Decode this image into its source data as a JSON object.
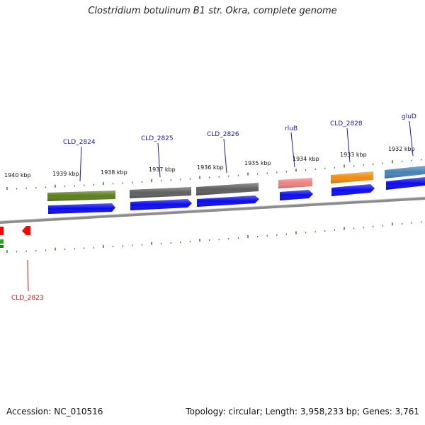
{
  "title": "Clostridium botulinum B1 str. Okra, complete genome",
  "footer": {
    "accession": "Accession: NC_010516",
    "summary": "Topology: circular; Length: 3,958,233 bp; Genes: 3,761"
  },
  "colors": {
    "backbone": "#888888",
    "tick": "#2e7d1a",
    "cds": "#0a0af0",
    "label_forward": "#1a1aa8",
    "label_reverse": "#cc1111"
  },
  "scale_labels": [
    "1940 kbp",
    "1939 kbp",
    "1938 kbp",
    "1937 kbp",
    "1936 kbp",
    "1935 kbp",
    "1934 kbp",
    "1933 kbp",
    "1932 kbp"
  ],
  "genes": [
    {
      "name": "CLD_2824",
      "color": "#5a7f1c"
    },
    {
      "name": "CLD_2825",
      "color": "#5e5e5e"
    },
    {
      "name": "CLD_2826",
      "color": "#5e5e5e"
    },
    {
      "name": "rluB",
      "color": "#f08080"
    },
    {
      "name": "CLD_2828",
      "color": "#f28c10"
    },
    {
      "name": "gluD",
      "color": "#4682b4"
    },
    {
      "name": "CLD_2823",
      "color": "#ff0000"
    }
  ]
}
